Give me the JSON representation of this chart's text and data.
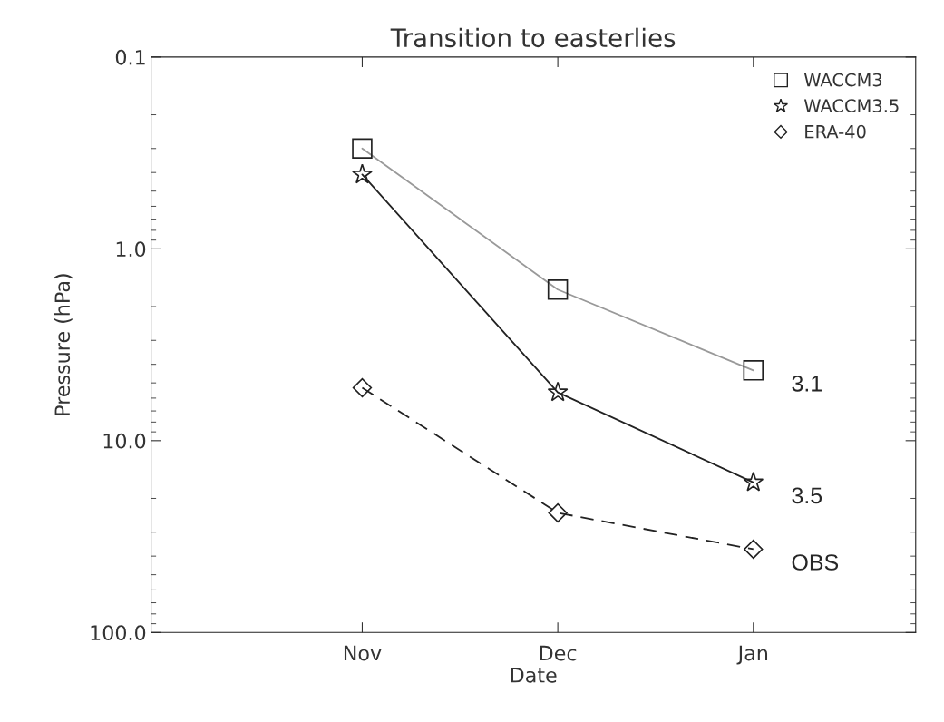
{
  "chart_data": {
    "type": "line",
    "title": "Transition to easterlies",
    "xlabel": "Date",
    "ylabel": "Pressure (hPa)",
    "categories": [
      "Nov",
      "Dec",
      "Jan"
    ],
    "series": [
      {
        "name": "WACCM3",
        "color": "#999999",
        "values": [
          0.3,
          1.63,
          4.3
        ],
        "marker": "square",
        "line_style": "solid"
      },
      {
        "name": "WACCM3.5",
        "color": "#222222",
        "values": [
          0.41,
          5.6,
          16.5
        ],
        "marker": "star",
        "line_style": "solid"
      },
      {
        "name": "ERA-40",
        "color": "#222222",
        "values": [
          5.3,
          23.8,
          36.8
        ],
        "marker": "diamond",
        "line_style": "dashed"
      }
    ],
    "log": "y",
    "ylim": [
      100,
      0.1
    ],
    "yticks": [
      {
        "value": 0.1,
        "label": "0.1"
      },
      {
        "value": 1,
        "label": "1.0"
      },
      {
        "value": 10,
        "label": "10.0"
      },
      {
        "value": 100,
        "label": "100.0"
      }
    ],
    "grid": false,
    "legend": "top right",
    "annotations": [
      {
        "text": "3.1",
        "x": "Jan",
        "y": 4.3
      },
      {
        "text": "3.5",
        "x": "Jan",
        "y": 16.5
      },
      {
        "text": "OBS",
        "x": "Jan",
        "y": 36.8
      }
    ]
  }
}
